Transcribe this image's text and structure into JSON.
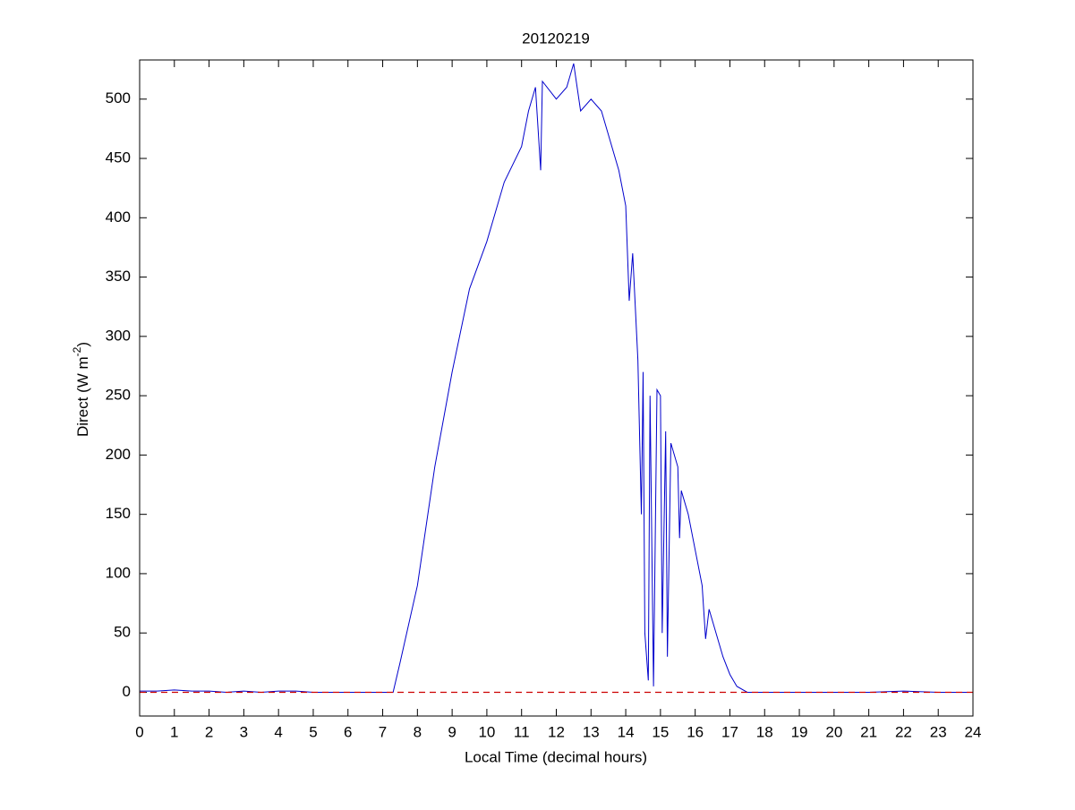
{
  "chart_data": {
    "type": "line",
    "title": "20120219",
    "xlabel": "Local Time (decimal hours)",
    "ylabel": "Direct (W m",
    "ylabel_superscript": "-2",
    "ylabel_end": ")",
    "x": [
      0,
      0.5,
      1,
      1.5,
      2,
      2.5,
      3,
      3.5,
      4,
      4.5,
      5,
      5.5,
      6,
      6.5,
      7,
      7.3,
      7.5,
      8,
      8.5,
      9,
      9.5,
      10,
      10.5,
      11,
      11.2,
      11.4,
      11.55,
      11.6,
      12,
      12.3,
      12.5,
      12.7,
      13,
      13.3,
      13.5,
      13.8,
      14,
      14.1,
      14.2,
      14.35,
      14.45,
      14.5,
      14.55,
      14.65,
      14.7,
      14.8,
      14.9,
      15,
      15.05,
      15.15,
      15.2,
      15.3,
      15.5,
      15.55,
      15.6,
      15.8,
      16,
      16.2,
      16.3,
      16.4,
      16.6,
      16.8,
      17,
      17.2,
      17.5,
      18,
      19,
      20,
      21,
      22,
      23,
      24
    ],
    "series": [
      {
        "name": "Direct",
        "color": "#0000cc",
        "values": [
          1,
          1,
          2,
          1,
          1,
          0,
          1,
          0,
          1,
          1,
          0,
          0,
          0,
          0,
          0,
          0,
          25,
          90,
          190,
          270,
          340,
          380,
          430,
          460,
          490,
          510,
          440,
          515,
          500,
          510,
          530,
          490,
          500,
          490,
          470,
          440,
          410,
          330,
          370,
          280,
          150,
          270,
          50,
          10,
          250,
          5,
          255,
          250,
          50,
          220,
          30,
          210,
          190,
          130,
          170,
          150,
          120,
          90,
          45,
          70,
          50,
          30,
          15,
          5,
          0,
          0,
          0,
          0,
          0,
          1,
          0,
          0
        ]
      }
    ],
    "reference_line": {
      "value": 0,
      "color": "#cc0000",
      "dashed": true
    },
    "xlim": [
      0,
      24
    ],
    "xticks": [
      0,
      1,
      2,
      3,
      4,
      5,
      6,
      7,
      8,
      9,
      10,
      11,
      12,
      13,
      14,
      15,
      16,
      17,
      18,
      19,
      20,
      21,
      22,
      23,
      24
    ],
    "ylim": [
      -20,
      533
    ],
    "yticks": [
      0,
      50,
      100,
      150,
      200,
      250,
      300,
      350,
      400,
      450,
      500
    ],
    "grid": false
  }
}
